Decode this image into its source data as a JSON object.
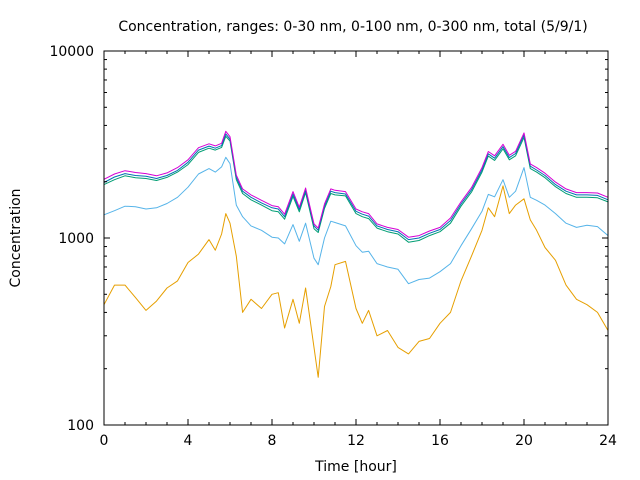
{
  "chart_data": {
    "type": "line",
    "title": "Concentration, ranges: 0-30 nm, 0-100 nm, 0-300 nm, total (5/9/1)",
    "xlabel": "Time [hour]",
    "ylabel": "Concentration",
    "xlim": [
      0,
      24
    ],
    "ylim": [
      100,
      10000
    ],
    "yscale": "log",
    "grid": false,
    "x_ticks": [
      0,
      4,
      8,
      12,
      16,
      20,
      24
    ],
    "x_tick_labels": [
      "0",
      "4",
      "8",
      "12",
      "16",
      "20",
      "24"
    ],
    "y_ticks": [
      100,
      1000,
      10000
    ],
    "y_tick_labels": [
      "100",
      "1000",
      "10000"
    ],
    "x": [
      0,
      0.5,
      1,
      1.5,
      2,
      2.5,
      3,
      3.5,
      4,
      4.5,
      5,
      5.3,
      5.6,
      5.8,
      6,
      6.3,
      6.6,
      7,
      7.5,
      8,
      8.3,
      8.6,
      9,
      9.3,
      9.6,
      10,
      10.2,
      10.5,
      10.8,
      11,
      11.5,
      12,
      12.3,
      12.6,
      13,
      13.5,
      14,
      14.5,
      15,
      15.5,
      16,
      16.5,
      17,
      17.5,
      18,
      18.3,
      18.6,
      19,
      19.3,
      19.6,
      20,
      20.3,
      20.6,
      21,
      21.5,
      22,
      22.5,
      23,
      23.5,
      24
    ],
    "series": [
      {
        "name": "",
        "color": "#e69f00",
        "values": [
          440,
          560,
          560,
          480,
          410,
          460,
          540,
          590,
          740,
          820,
          980,
          860,
          1050,
          1350,
          1200,
          800,
          400,
          470,
          420,
          500,
          510,
          330,
          470,
          350,
          540,
          260,
          180,
          430,
          550,
          720,
          750,
          420,
          350,
          410,
          300,
          320,
          260,
          240,
          280,
          290,
          350,
          400,
          590,
          800,
          1100,
          1450,
          1300,
          1900,
          1350,
          1500,
          1620,
          1250,
          1100,
          890,
          760,
          560,
          470,
          440,
          400,
          320
        ]
      },
      {
        "name": "",
        "color": "#56b4e9",
        "values": [
          1330,
          1400,
          1480,
          1470,
          1430,
          1450,
          1530,
          1650,
          1870,
          2200,
          2350,
          2250,
          2400,
          2700,
          2500,
          1500,
          1300,
          1160,
          1100,
          1010,
          1000,
          930,
          1180,
          960,
          1200,
          780,
          720,
          1000,
          1230,
          1210,
          1160,
          910,
          840,
          850,
          730,
          700,
          680,
          570,
          600,
          610,
          660,
          730,
          910,
          1120,
          1390,
          1710,
          1660,
          2050,
          1650,
          1780,
          2380,
          1650,
          1590,
          1500,
          1350,
          1200,
          1140,
          1170,
          1150,
          1030
        ]
      },
      {
        "name": "",
        "color": "#009e73",
        "values": [
          1930,
          2050,
          2150,
          2100,
          2080,
          2030,
          2110,
          2250,
          2470,
          2870,
          3020,
          2950,
          3050,
          3500,
          3300,
          2050,
          1730,
          1600,
          1500,
          1400,
          1380,
          1260,
          1670,
          1380,
          1750,
          1120,
          1070,
          1440,
          1730,
          1700,
          1680,
          1350,
          1300,
          1270,
          1130,
          1080,
          1050,
          950,
          970,
          1030,
          1080,
          1200,
          1480,
          1760,
          2250,
          2740,
          2600,
          3000,
          2620,
          2750,
          3450,
          2350,
          2250,
          2100,
          1880,
          1730,
          1650,
          1650,
          1640,
          1560
        ]
      },
      {
        "name": "",
        "color": "#0072b2",
        "values": [
          1980,
          2120,
          2210,
          2160,
          2140,
          2080,
          2160,
          2300,
          2540,
          2950,
          3100,
          3020,
          3120,
          3600,
          3380,
          2110,
          1780,
          1650,
          1540,
          1450,
          1430,
          1300,
          1720,
          1420,
          1800,
          1160,
          1100,
          1480,
          1780,
          1750,
          1720,
          1390,
          1340,
          1310,
          1160,
          1110,
          1080,
          980,
          1000,
          1060,
          1110,
          1240,
          1520,
          1810,
          2310,
          2820,
          2670,
          3080,
          2690,
          2830,
          3550,
          2420,
          2310,
          2160,
          1930,
          1780,
          1700,
          1700,
          1690,
          1600
        ]
      },
      {
        "name": "",
        "color": "#d400d4",
        "values": [
          2060,
          2200,
          2290,
          2240,
          2210,
          2150,
          2230,
          2380,
          2620,
          3040,
          3190,
          3110,
          3210,
          3720,
          3480,
          2170,
          1830,
          1700,
          1590,
          1490,
          1470,
          1340,
          1770,
          1460,
          1850,
          1190,
          1130,
          1520,
          1830,
          1800,
          1770,
          1430,
          1380,
          1350,
          1190,
          1140,
          1110,
          1010,
          1030,
          1090,
          1140,
          1280,
          1560,
          1860,
          2380,
          2900,
          2750,
          3170,
          2770,
          2910,
          3650,
          2490,
          2380,
          2220,
          1990,
          1830,
          1750,
          1750,
          1740,
          1650
        ]
      }
    ]
  }
}
